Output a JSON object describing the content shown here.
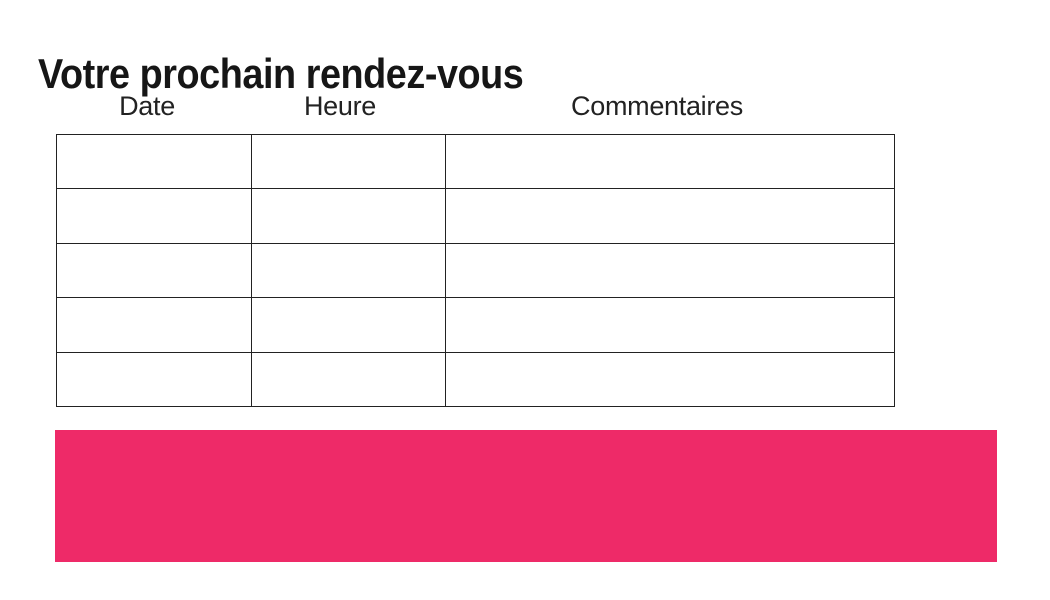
{
  "page": {
    "title": "Votre prochain rendez-vous"
  },
  "appointments_table": {
    "headers": [
      "Date",
      "Heure",
      "Commentaires"
    ],
    "rows": [
      [
        "",
        "",
        ""
      ],
      [
        "",
        "",
        ""
      ],
      [
        "",
        "",
        ""
      ],
      [
        "",
        "",
        ""
      ],
      [
        "",
        "",
        ""
      ]
    ]
  },
  "colors": {
    "accent_pink": "#EE2A68",
    "table_border": "#222222",
    "text": "#1b1b1b"
  }
}
